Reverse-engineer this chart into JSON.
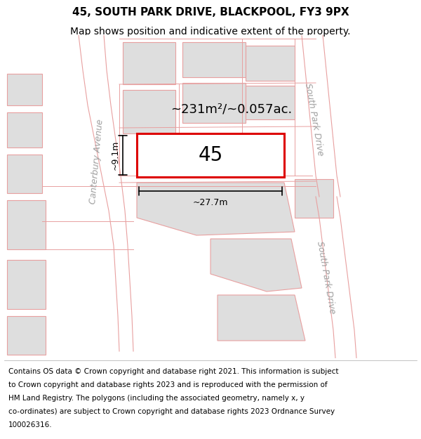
{
  "title": "45, SOUTH PARK DRIVE, BLACKPOOL, FY3 9PX",
  "subtitle": "Map shows position and indicative extent of the property.",
  "background_color": "#ffffff",
  "map_bg": "#ffffff",
  "road_line_color": "#e8a0a0",
  "building_fill": "#dedede",
  "building_edge": "#e8a0a0",
  "highlight_fill": "#ffffff",
  "highlight_edge": "#dd0000",
  "area_text": "~231m²/~0.057ac.",
  "property_number": "45",
  "dim_width": "~27.7m",
  "dim_height": "~9.1m",
  "street_label_left": "Canterbury Avenue",
  "street_label_right_top": "South Park Drive",
  "street_label_right_bottom": "South Park Drive",
  "title_fontsize": 11,
  "subtitle_fontsize": 10,
  "footer_fontsize": 7.5,
  "footer_lines": [
    "Contains OS data © Crown copyright and database right 2021. This information is subject",
    "to Crown copyright and database rights 2023 and is reproduced with the permission of",
    "HM Land Registry. The polygons (including the associated geometry, namely x, y",
    "co-ordinates) are subject to Crown copyright and database rights 2023 Ordnance Survey",
    "100026316."
  ]
}
